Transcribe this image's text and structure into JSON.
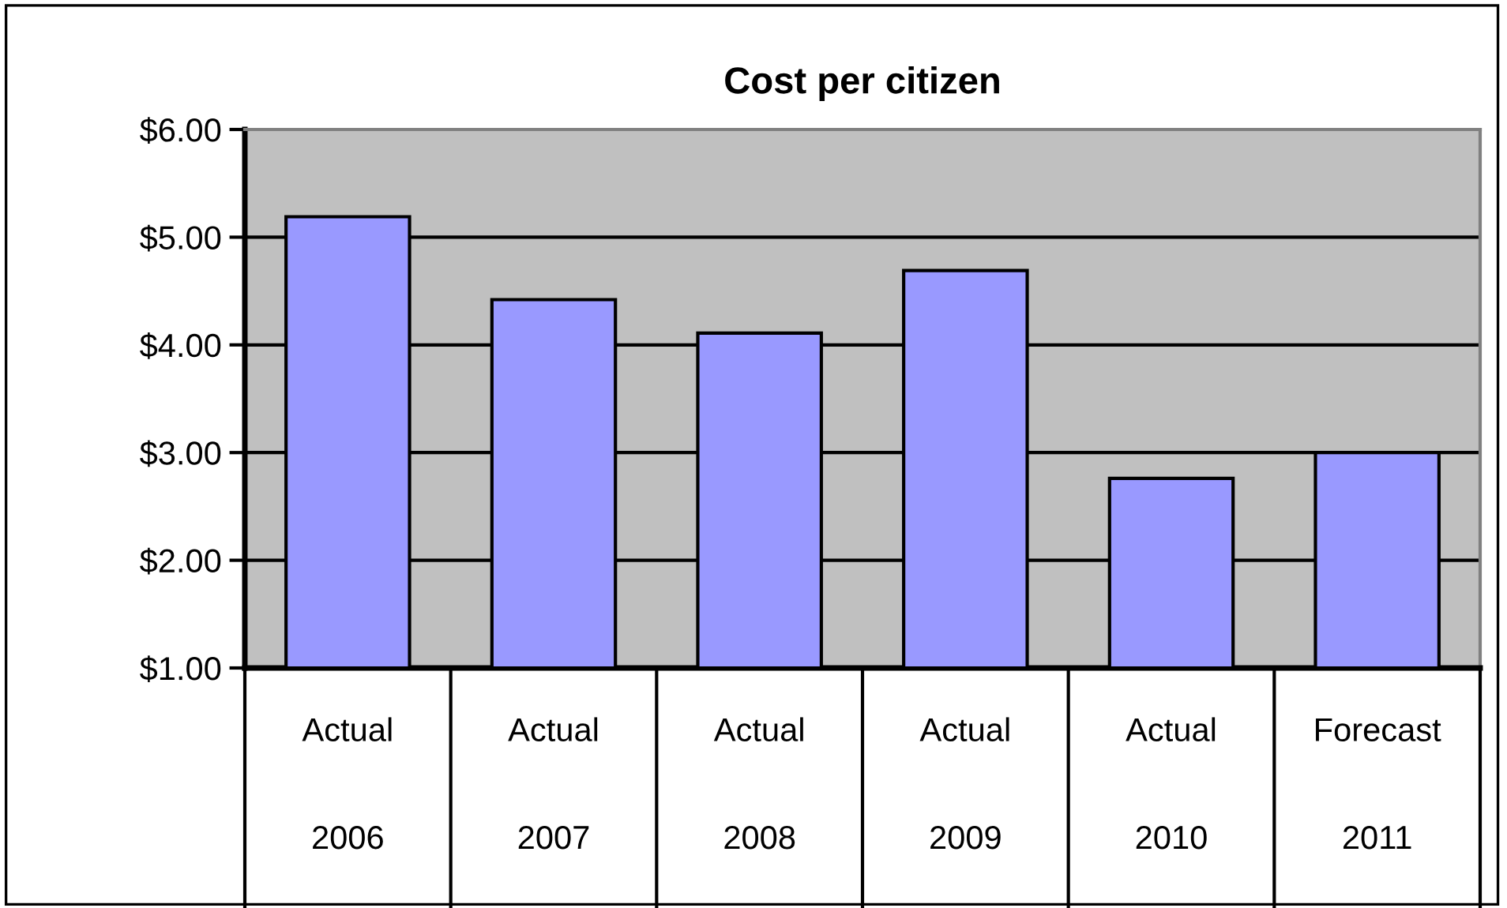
{
  "chart_data": {
    "type": "bar",
    "title": "Cost per citizen",
    "categories": [
      "Actual\n2006",
      "Actual\n2007",
      "Actual\n2008",
      "Actual\n2009",
      "Actual\n2010",
      "Forecast\n2011"
    ],
    "values": [
      5.19,
      4.42,
      4.11,
      4.69,
      2.76,
      3.0
    ],
    "color": "#9999ff",
    "ylim": [
      1,
      6
    ],
    "yticks": [
      {
        "value": 1,
        "label": "$1.00"
      },
      {
        "value": 2,
        "label": "$2.00"
      },
      {
        "value": 3,
        "label": "$3.00"
      },
      {
        "value": 4,
        "label": "$4.00"
      },
      {
        "value": 5,
        "label": "$5.00"
      },
      {
        "value": 6,
        "label": "$6.00"
      }
    ],
    "grid": "y"
  }
}
